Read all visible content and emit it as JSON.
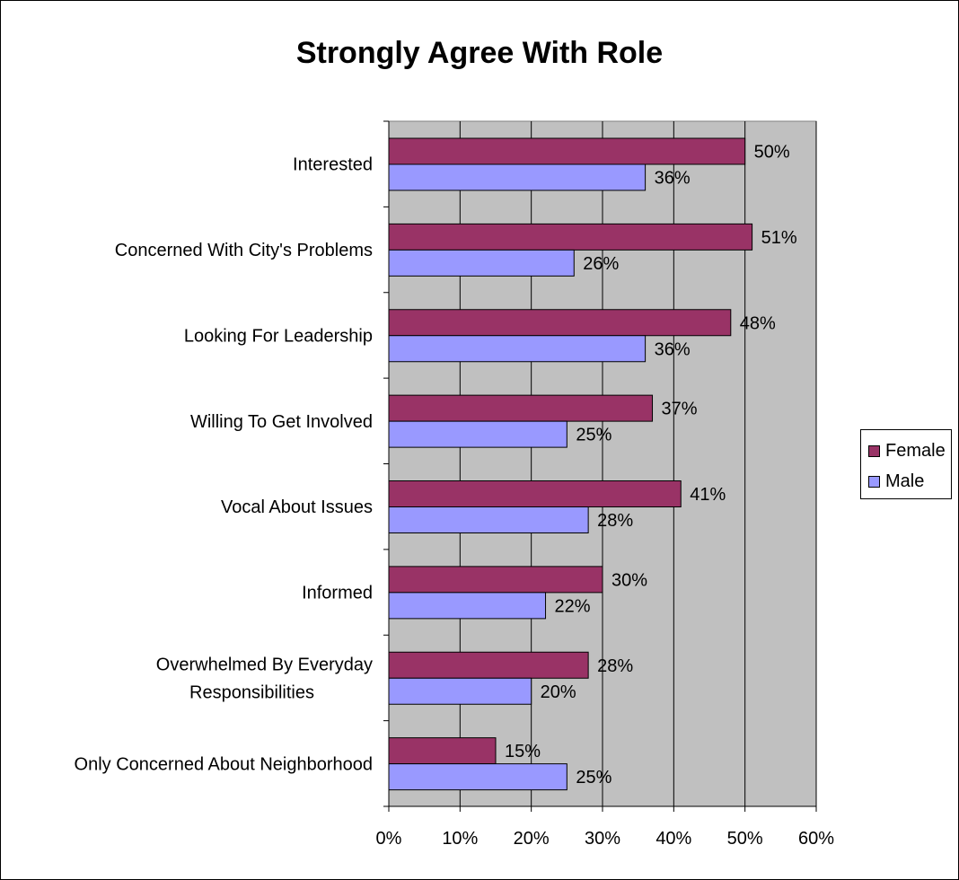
{
  "chart_data": {
    "type": "bar",
    "orientation": "horizontal",
    "title": "Strongly Agree With Role",
    "categories": [
      "Interested",
      "Concerned With City's Problems",
      "Looking For Leadership",
      "Willing To Get Involved",
      "Vocal About Issues",
      "Informed",
      "Overwhelmed By Everyday Responsibilities",
      "Only Concerned About Neighborhood"
    ],
    "category_label_lines": [
      [
        "Interested"
      ],
      [
        "Concerned With City's Problems"
      ],
      [
        "Looking For Leadership"
      ],
      [
        "Willing To Get Involved"
      ],
      [
        "Vocal About Issues"
      ],
      [
        "Informed"
      ],
      [
        "Overwhelmed By Everyday",
        "Responsibilities"
      ],
      [
        "Only Concerned About Neighborhood"
      ]
    ],
    "series": [
      {
        "name": "Female",
        "color": "#993366",
        "values": [
          50,
          51,
          48,
          37,
          41,
          30,
          28,
          15
        ],
        "labels": [
          "50%",
          "51%",
          "48%",
          "37%",
          "41%",
          "30%",
          "28%",
          "15%"
        ]
      },
      {
        "name": "Male",
        "color": "#9999ff",
        "values": [
          36,
          26,
          36,
          25,
          28,
          22,
          20,
          25
        ],
        "labels": [
          "36%",
          "26%",
          "36%",
          "25%",
          "28%",
          "22%",
          "20%",
          "25%"
        ]
      }
    ],
    "xlim": [
      0,
      60
    ],
    "xticks": [
      "0%",
      "10%",
      "20%",
      "30%",
      "40%",
      "50%",
      "60%"
    ],
    "xlabel": "",
    "ylabel": "",
    "grid": true,
    "plot_background": "#c0c0c0",
    "legend_position": "right"
  }
}
